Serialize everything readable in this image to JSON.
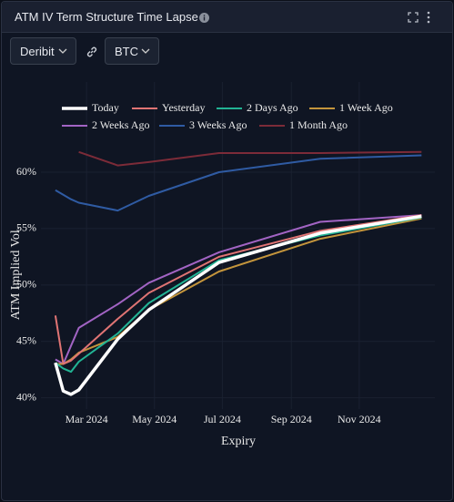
{
  "header": {
    "title": "ATM IV Term Structure Time Lapse"
  },
  "controls": {
    "exchange": "Deribit",
    "currency": "BTC"
  },
  "chart_data": {
    "type": "line",
    "xlabel": "Expiry",
    "ylabel": "ATM Implied Vol.",
    "x": [
      "2024-02-02",
      "2024-02-09",
      "2024-02-16",
      "2024-02-23",
      "2024-03-29",
      "2024-04-26",
      "2024-06-28",
      "2024-09-27",
      "2024-12-27"
    ],
    "xlim": [
      "2024-01-20",
      "2025-01-08"
    ],
    "xticks": [
      {
        "value": "2024-03-01",
        "label": "Mar 2024"
      },
      {
        "value": "2024-05-01",
        "label": "May 2024"
      },
      {
        "value": "2024-07-01",
        "label": "Jul 2024"
      },
      {
        "value": "2024-09-01",
        "label": "Sep 2024"
      },
      {
        "value": "2024-11-01",
        "label": "Nov 2024"
      }
    ],
    "ylim": [
      39,
      68
    ],
    "yticks": [
      {
        "value": 40,
        "label": "40%"
      },
      {
        "value": 45,
        "label": "45%"
      },
      {
        "value": 50,
        "label": "50%"
      },
      {
        "value": 55,
        "label": "55%"
      },
      {
        "value": 60,
        "label": "60%"
      }
    ],
    "grid": true,
    "series": [
      {
        "name": "Today",
        "color": "#ffffff",
        "width": 3.5,
        "values": [
          43.1,
          40.6,
          40.3,
          40.7,
          45.2,
          47.8,
          52.0,
          54.6,
          56.1
        ]
      },
      {
        "name": "Yesterday",
        "color": "#e07474",
        "width": 2,
        "values": [
          47.3,
          43.0,
          43.3,
          43.9,
          47.0,
          49.3,
          52.5,
          54.8,
          56.2
        ]
      },
      {
        "name": "2 Days Ago",
        "color": "#22b394",
        "width": 2,
        "values": [
          43.1,
          42.6,
          42.3,
          43.2,
          45.7,
          48.4,
          52.2,
          54.4,
          56.0
        ]
      },
      {
        "name": "1 Week Ago",
        "color": "#c4953c",
        "width": 2,
        "values": [
          43.0,
          43.0,
          43.4,
          44.0,
          45.4,
          47.8,
          51.2,
          54.1,
          55.9
        ]
      },
      {
        "name": "2 Weeks Ago",
        "color": "#a264c4",
        "width": 2,
        "values": [
          43.4,
          43.0,
          44.6,
          46.2,
          48.3,
          50.2,
          52.9,
          55.6,
          56.2
        ]
      },
      {
        "name": "3 Weeks Ago",
        "color": "#2f5ba3",
        "width": 2,
        "values": [
          58.4,
          58.0,
          57.6,
          57.3,
          56.6,
          57.9,
          60.0,
          61.2,
          61.5
        ]
      },
      {
        "name": "1 Month Ago",
        "color": "#7c2b38",
        "width": 2,
        "values": [
          null,
          null,
          null,
          61.8,
          60.6,
          60.9,
          61.7,
          61.7,
          61.8
        ]
      }
    ]
  }
}
